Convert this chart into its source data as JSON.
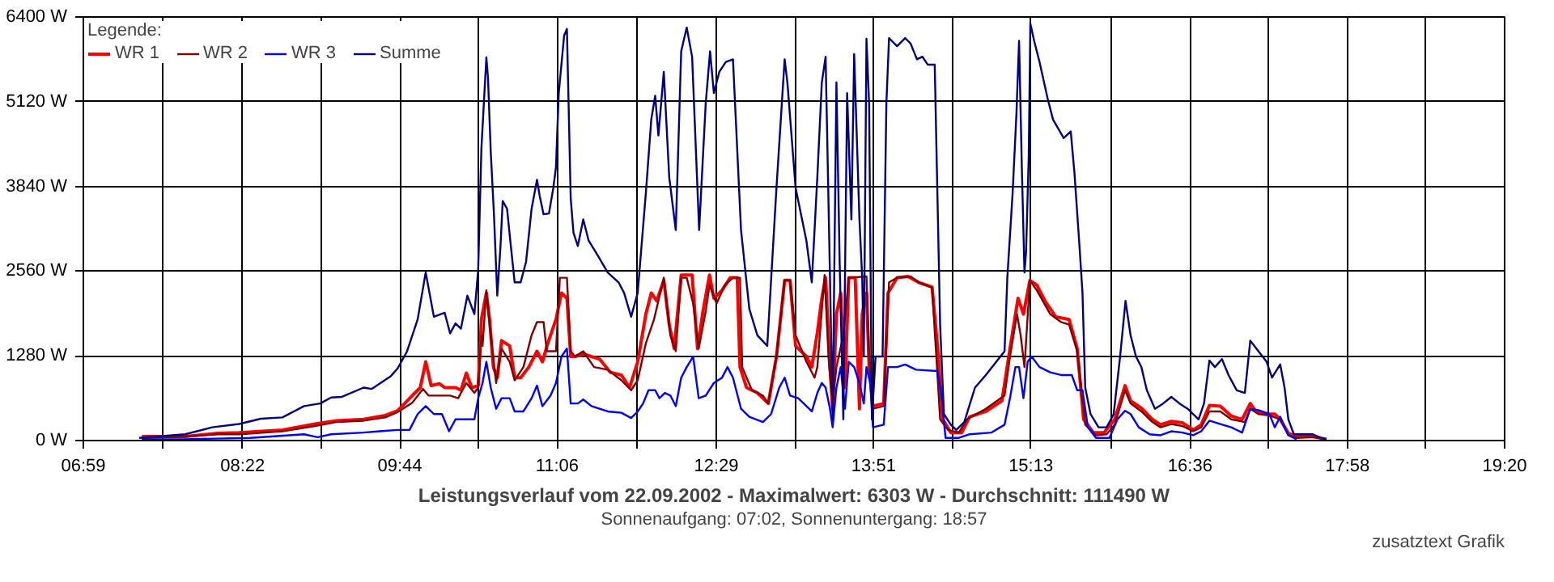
{
  "chart_data": {
    "type": "line",
    "title": "Leistungsverlauf vom 22.09.2002 - Maximalwert: 6303 W - Durchschnitt: 111490 W",
    "subtitle": "Sonnenaufgang: 07:02, Sonnenuntergang: 18:57",
    "annotations": [
      "zusatztext Grafik"
    ],
    "legend_title": "Legende:",
    "legend": "top left",
    "grid": true,
    "xlim": [
      6.9833,
      19.3333
    ],
    "ylim": [
      0,
      6400
    ],
    "xticks": [
      {
        "value": 6.9833,
        "label": "06:59"
      },
      {
        "value": 7.675,
        "label": null
      },
      {
        "value": 8.3667,
        "label": "08:22"
      },
      {
        "value": 9.05,
        "label": null
      },
      {
        "value": 9.7333,
        "label": "09:44"
      },
      {
        "value": 10.4167,
        "label": null
      },
      {
        "value": 11.1,
        "label": "11:06"
      },
      {
        "value": 11.7917,
        "label": null
      },
      {
        "value": 12.4833,
        "label": "12:29"
      },
      {
        "value": 13.1667,
        "label": null
      },
      {
        "value": 13.85,
        "label": "13:51"
      },
      {
        "value": 14.5333,
        "label": null
      },
      {
        "value": 15.2167,
        "label": "15:13"
      },
      {
        "value": 15.9083,
        "label": null
      },
      {
        "value": 16.6,
        "label": "16:36"
      },
      {
        "value": 17.2833,
        "label": null
      },
      {
        "value": 17.9667,
        "label": "17:58"
      },
      {
        "value": 18.65,
        "label": null
      },
      {
        "value": 19.3333,
        "label": "19:20"
      }
    ],
    "yticks": [
      {
        "value": 0,
        "label": "0 W"
      },
      {
        "value": 1280,
        "label": "1280 W"
      },
      {
        "value": 2560,
        "label": "2560 W"
      },
      {
        "value": 3840,
        "label": "3840 W"
      },
      {
        "value": 5120,
        "label": "5120 W"
      },
      {
        "value": 6400,
        "label": "6400 W"
      }
    ],
    "series": [
      {
        "name": "WR 1",
        "color": "#ff0000",
        "x": [
          7.491,
          7.867,
          8.149,
          8.337,
          8.713,
          8.995,
          9.183,
          9.418,
          9.606,
          9.714,
          9.841,
          9.911,
          9.958,
          10.005,
          10.076,
          10.123,
          10.217,
          10.264,
          10.311,
          10.358,
          10.414,
          10.442,
          10.485,
          10.513,
          10.546,
          10.58,
          10.617,
          10.688,
          10.731,
          10.783,
          10.854,
          10.925,
          10.972,
          11.019,
          11.09,
          11.138,
          11.185,
          11.218,
          11.256,
          11.327,
          11.469,
          11.563,
          11.658,
          11.729,
          11.8,
          11.871,
          11.918,
          11.966,
          12.027,
          12.074,
          12.117,
          12.178,
          12.273,
          12.32,
          12.367,
          12.424,
          12.462,
          12.533,
          12.604,
          12.665,
          12.689,
          12.746,
          12.84,
          12.935,
          13.006,
          13.077,
          13.124,
          13.172,
          13.266,
          13.313,
          13.361,
          13.4,
          13.433,
          13.471,
          13.494,
          13.527,
          13.564,
          13.601,
          13.634,
          13.69,
          13.727,
          13.751,
          13.788,
          13.811,
          13.844,
          13.938,
          13.975,
          14.054,
          14.148,
          14.241,
          14.358,
          14.405,
          14.451,
          14.521,
          14.615,
          14.685,
          14.825,
          14.965,
          15.035,
          15.105,
          15.152,
          15.208,
          15.268,
          15.339,
          15.432,
          15.549,
          15.619,
          15.675,
          15.759,
          15.852,
          15.945,
          16.035,
          16.083,
          16.177,
          16.272,
          16.343,
          16.437,
          16.532,
          16.627,
          16.697,
          16.768,
          16.863,
          16.958,
          17.052,
          17.123,
          17.17,
          17.241,
          17.336,
          17.383,
          17.454,
          17.525,
          17.667,
          17.785
        ],
        "values": [
          60,
          60,
          110,
          120,
          160,
          250,
          300,
          320,
          380,
          450,
          680,
          800,
          1190,
          830,
          860,
          800,
          800,
          760,
          1020,
          800,
          830,
          1830,
          2230,
          1830,
          1110,
          950,
          1510,
          1430,
          950,
          950,
          1110,
          1350,
          1190,
          1470,
          1830,
          2230,
          2150,
          1270,
          1270,
          1310,
          1230,
          1030,
          990,
          800,
          1190,
          1910,
          2230,
          2110,
          2420,
          1750,
          1390,
          2500,
          2500,
          1390,
          1950,
          2500,
          2150,
          2270,
          2460,
          2460,
          1110,
          800,
          720,
          560,
          1270,
          2420,
          2420,
          1430,
          1270,
          1110,
          1630,
          2150,
          2460,
          1110,
          480,
          1910,
          2230,
          800,
          2460,
          2460,
          480,
          1910,
          2230,
          1110,
          520,
          560,
          2230,
          2460,
          2480,
          2390,
          2320,
          1430,
          320,
          120,
          120,
          360,
          440,
          600,
          1390,
          2150,
          1910,
          2420,
          2350,
          2110,
          1870,
          1830,
          1390,
          320,
          120,
          120,
          320,
          830,
          600,
          490,
          320,
          240,
          290,
          270,
          160,
          240,
          530,
          520,
          370,
          320,
          560,
          440,
          400,
          400,
          320,
          110,
          60,
          60,
          20
        ]
      },
      {
        "name": "WR 2",
        "color": "#800000",
        "x": [
          7.491,
          7.867,
          8.149,
          8.337,
          8.713,
          8.995,
          9.183,
          9.418,
          9.606,
          9.714,
          9.841,
          9.935,
          9.982,
          10.052,
          10.17,
          10.24,
          10.311,
          10.381,
          10.414,
          10.442,
          10.452,
          10.485,
          10.523,
          10.57,
          10.617,
          10.688,
          10.731,
          10.807,
          10.878,
          10.925,
          10.982,
          11.01,
          11.09,
          11.124,
          11.185,
          11.218,
          11.256,
          11.327,
          11.421,
          11.54,
          11.658,
          11.743,
          11.8,
          11.871,
          11.942,
          12.027,
          12.084,
          12.131,
          12.178,
          12.226,
          12.282,
          12.33,
          12.391,
          12.424,
          12.486,
          12.557,
          12.628,
          12.689,
          12.708,
          12.793,
          12.888,
          12.935,
          13.006,
          13.077,
          13.124,
          13.172,
          13.266,
          13.337,
          13.361,
          13.424,
          13.461,
          13.494,
          13.527,
          13.587,
          13.634,
          13.788,
          13.811,
          13.844,
          13.938,
          13.984,
          14.054,
          14.171,
          14.241,
          14.358,
          14.395,
          14.428,
          14.498,
          14.591,
          14.661,
          14.825,
          14.988,
          15.035,
          15.096,
          15.128,
          15.161,
          15.208,
          15.268,
          15.385,
          15.479,
          15.549,
          15.619,
          15.689,
          15.782,
          15.875,
          15.945,
          16.035,
          16.083,
          16.177,
          16.272,
          16.343,
          16.437,
          16.532,
          16.627,
          16.697,
          16.768,
          16.863,
          16.958,
          17.076,
          17.123,
          17.194,
          17.289,
          17.383,
          17.454,
          17.525,
          17.667,
          17.785
        ],
        "values": [
          40,
          60,
          95,
          95,
          140,
          220,
          280,
          300,
          350,
          430,
          570,
          780,
          680,
          680,
          680,
          640,
          870,
          720,
          800,
          1590,
          1430,
          2270,
          1590,
          870,
          1390,
          1190,
          910,
          1110,
          1590,
          1790,
          1790,
          1350,
          1350,
          2460,
          2460,
          1350,
          1270,
          1350,
          1110,
          1070,
          910,
          760,
          910,
          1470,
          1830,
          2460,
          1590,
          1350,
          2460,
          2460,
          2070,
          1390,
          1950,
          2350,
          2070,
          2350,
          2460,
          2460,
          1110,
          760,
          680,
          560,
          1270,
          2420,
          2420,
          1590,
          1190,
          950,
          1110,
          2500,
          1190,
          560,
          1110,
          1590,
          2460,
          2480,
          1270,
          480,
          520,
          2390,
          2460,
          2480,
          2390,
          2310,
          1270,
          320,
          160,
          120,
          320,
          480,
          680,
          1270,
          1910,
          1590,
          1110,
          2420,
          2270,
          1910,
          1790,
          1750,
          1350,
          240,
          80,
          95,
          240,
          760,
          560,
          440,
          280,
          200,
          250,
          220,
          140,
          200,
          440,
          440,
          320,
          280,
          480,
          400,
          380,
          320,
          80,
          40,
          50,
          20
        ]
      },
      {
        "name": "WR 3",
        "color": "#0000ff",
        "x": [
          7.491,
          7.867,
          8.431,
          8.901,
          9.019,
          9.136,
          9.418,
          9.559,
          9.714,
          9.817,
          9.888,
          9.958,
          10.029,
          10.099,
          10.161,
          10.217,
          10.381,
          10.414,
          10.452,
          10.485,
          10.523,
          10.57,
          10.617,
          10.688,
          10.731,
          10.807,
          10.878,
          10.925,
          10.972,
          11.043,
          11.09,
          11.138,
          11.185,
          11.218,
          11.28,
          11.327,
          11.398,
          11.54,
          11.658,
          11.743,
          11.8,
          11.847,
          11.894,
          11.952,
          11.989,
          12.036,
          12.084,
          12.131,
          12.178,
          12.226,
          12.282,
          12.33,
          12.391,
          12.462,
          12.533,
          12.58,
          12.628,
          12.698,
          12.77,
          12.888,
          12.959,
          13.03,
          13.077,
          13.124,
          13.195,
          13.266,
          13.313,
          13.361,
          13.4,
          13.433,
          13.471,
          13.494,
          13.527,
          13.564,
          13.601,
          13.634,
          13.681,
          13.727,
          13.765,
          13.788,
          13.821,
          13.844,
          13.938,
          13.975,
          14.054,
          14.124,
          14.218,
          14.405,
          14.442,
          14.475,
          14.591,
          14.685,
          14.872,
          14.988,
          15.035,
          15.082,
          15.114,
          15.152,
          15.189,
          15.222,
          15.292,
          15.385,
          15.479,
          15.572,
          15.619,
          15.665,
          15.712,
          15.782,
          15.899,
          15.969,
          16.035,
          16.083,
          16.154,
          16.248,
          16.343,
          16.437,
          16.532,
          16.627,
          16.697,
          16.768,
          16.863,
          16.958,
          17.052,
          17.123,
          17.194,
          17.289,
          17.336,
          17.383,
          17.454,
          17.525
        ],
        "values": [
          20,
          20,
          40,
          95,
          50,
          95,
          120,
          140,
          160,
          160,
          400,
          520,
          400,
          400,
          140,
          320,
          320,
          640,
          870,
          1190,
          800,
          480,
          640,
          640,
          440,
          440,
          640,
          830,
          520,
          680,
          870,
          1270,
          1390,
          560,
          560,
          620,
          520,
          440,
          420,
          340,
          440,
          560,
          760,
          760,
          640,
          720,
          680,
          520,
          950,
          1110,
          1270,
          640,
          680,
          870,
          950,
          1110,
          950,
          480,
          360,
          280,
          400,
          800,
          950,
          680,
          640,
          520,
          440,
          720,
          870,
          800,
          480,
          200,
          800,
          1110,
          480,
          1190,
          1110,
          870,
          560,
          1110,
          870,
          200,
          240,
          1110,
          1110,
          1150,
          1070,
          1050,
          640,
          40,
          40,
          95,
          120,
          240,
          640,
          1110,
          1110,
          640,
          1190,
          1270,
          1110,
          1030,
          990,
          990,
          760,
          760,
          200,
          40,
          40,
          320,
          450,
          400,
          200,
          95,
          80,
          140,
          120,
          80,
          140,
          300,
          250,
          200,
          120,
          480,
          460,
          400,
          200,
          360,
          80,
          20
        ]
      },
      {
        "name": "Summe",
        "color": "#000080",
        "x": [
          7.468,
          7.867,
          8.102,
          8.337,
          8.525,
          8.713,
          8.901,
          9.042,
          9.136,
          9.23,
          9.418,
          9.488,
          9.653,
          9.714,
          9.794,
          9.888,
          9.958,
          10.029,
          10.123,
          10.17,
          10.217,
          10.264,
          10.32,
          10.381,
          10.414,
          10.442,
          10.485,
          10.499,
          10.523,
          10.551,
          10.58,
          10.608,
          10.627,
          10.665,
          10.693,
          10.731,
          10.783,
          10.83,
          10.878,
          10.925,
          10.948,
          10.982,
          11.029,
          11.067,
          11.09,
          11.114,
          11.161,
          11.185,
          11.218,
          11.242,
          11.28,
          11.327,
          11.374,
          11.445,
          11.54,
          11.634,
          11.682,
          11.743,
          11.8,
          11.871,
          11.918,
          11.952,
          11.98,
          12.027,
          12.074,
          12.131,
          12.178,
          12.226,
          12.273,
          12.334,
          12.391,
          12.429,
          12.462,
          12.509,
          12.566,
          12.628,
          12.698,
          12.77,
          12.84,
          12.926,
          13.006,
          13.077,
          13.101,
          13.172,
          13.266,
          13.313,
          13.361,
          13.4,
          13.433,
          13.471,
          13.494,
          13.527,
          13.555,
          13.587,
          13.62,
          13.657,
          13.681,
          13.727,
          13.751,
          13.765,
          13.788,
          13.811,
          13.835,
          13.867,
          13.928,
          13.961,
          13.984,
          14.054,
          14.124,
          14.171,
          14.227,
          14.274,
          14.32,
          14.381,
          14.428,
          14.461,
          14.521,
          14.568,
          14.638,
          14.731,
          14.825,
          14.988,
          15.012,
          15.058,
          15.091,
          15.114,
          15.138,
          15.161,
          15.175,
          15.198,
          15.212,
          15.245,
          15.292,
          15.362,
          15.409,
          15.502,
          15.563,
          15.595,
          15.642,
          15.665,
          15.689,
          15.735,
          15.805,
          15.875,
          15.936,
          15.992,
          16.039,
          16.083,
          16.13,
          16.177,
          16.224,
          16.295,
          16.366,
          16.437,
          16.508,
          16.579,
          16.674,
          16.721,
          16.768,
          16.816,
          16.877,
          16.934,
          17.005,
          17.076,
          17.123,
          17.194,
          17.265,
          17.312,
          17.383,
          17.421,
          17.454,
          17.502,
          17.667,
          17.738,
          17.785
        ],
        "values": [
          40,
          95,
          200,
          250,
          330,
          350,
          520,
          560,
          650,
          660,
          800,
          780,
          970,
          1090,
          1340,
          1830,
          2540,
          1870,
          1930,
          1620,
          1770,
          1690,
          2190,
          1910,
          2580,
          4410,
          5790,
          5490,
          4370,
          3420,
          2190,
          2940,
          3620,
          3500,
          3020,
          2390,
          2390,
          2700,
          3500,
          3940,
          3700,
          3420,
          3430,
          3820,
          4130,
          5250,
          6120,
          6220,
          3660,
          3140,
          2940,
          3340,
          3020,
          2820,
          2540,
          2390,
          2230,
          1870,
          2230,
          3740,
          4850,
          5210,
          4610,
          5570,
          3980,
          3180,
          5880,
          6240,
          5800,
          3180,
          5090,
          5880,
          5250,
          5570,
          5720,
          5760,
          3180,
          1990,
          1590,
          1430,
          3820,
          5760,
          5410,
          3820,
          3020,
          2390,
          3980,
          5410,
          5800,
          2460,
          320,
          5410,
          2700,
          320,
          5250,
          3340,
          5840,
          3340,
          2460,
          1270,
          6070,
          5090,
          320,
          1270,
          1270,
          5090,
          6080,
          5960,
          6080,
          6000,
          5760,
          5800,
          5680,
          5680,
          1750,
          400,
          240,
          160,
          280,
          800,
          990,
          1350,
          2460,
          3740,
          4930,
          6040,
          4130,
          2540,
          2860,
          4290,
          6300,
          6040,
          5720,
          5170,
          4850,
          4570,
          4670,
          4050,
          2860,
          2230,
          800,
          400,
          200,
          200,
          400,
          1270,
          2110,
          1590,
          1270,
          1110,
          760,
          480,
          560,
          660,
          560,
          480,
          320,
          560,
          1210,
          1110,
          1230,
          990,
          760,
          720,
          1510,
          1350,
          1190,
          950,
          1150,
          800,
          320,
          95,
          95,
          40,
          20
        ]
      }
    ]
  }
}
